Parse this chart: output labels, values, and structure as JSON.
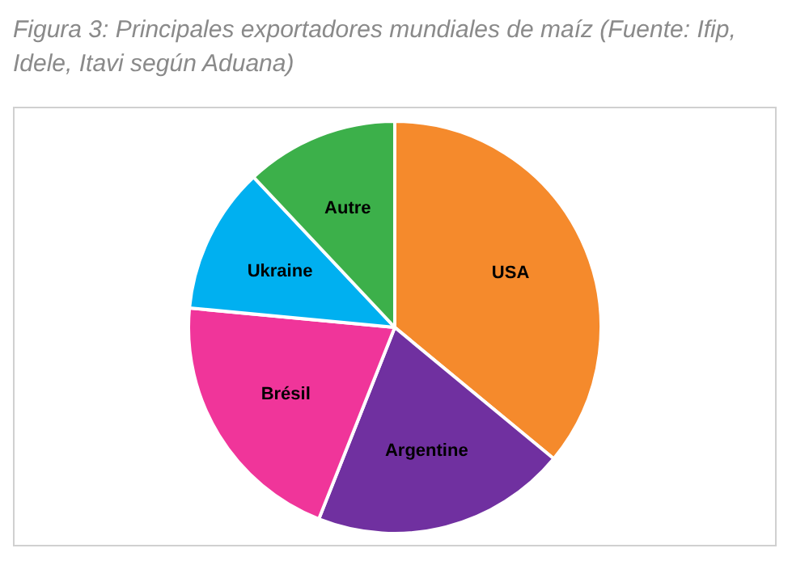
{
  "chart_data": {
    "type": "pie",
    "title": "Figura 3: Principales exportadores mundiales de maíz (Fuente: Ifip, Idele, Itavi según Aduana)",
    "categories": [
      "USA",
      "Argentine",
      "Brésil",
      "Ukraine",
      "Autre"
    ],
    "values": [
      36,
      20,
      20.5,
      11.5,
      12
    ],
    "colors": [
      "#f58a2c",
      "#7030a0",
      "#f0359a",
      "#00b0f0",
      "#3cb04a"
    ],
    "legend": false
  }
}
